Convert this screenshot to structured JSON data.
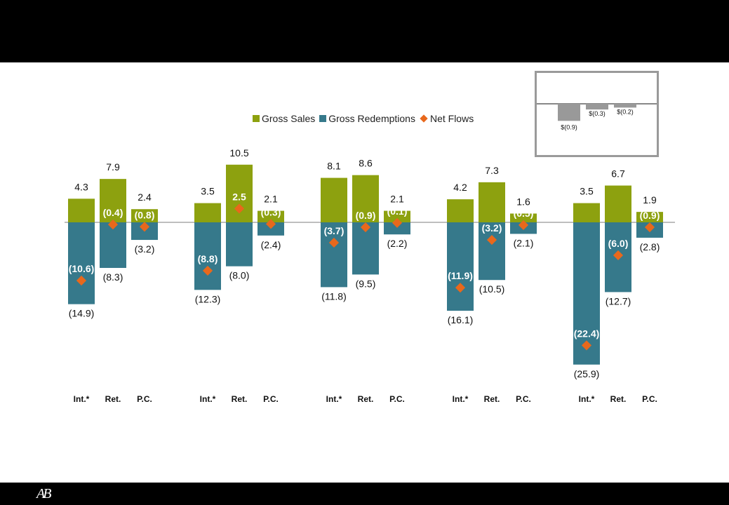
{
  "legend": {
    "gross_sales": "Gross Sales",
    "gross_redemptions": "Gross Redemptions",
    "net_flows": "Net Flows"
  },
  "logo_text": "AB",
  "colors": {
    "gross_sales": "#8da10f",
    "gross_redemptions": "#36798b",
    "net_flows": "#e8681c",
    "inset_bars": "#999999"
  },
  "chart_data": [
    {
      "type": "bar",
      "categories": [
        "Int.*",
        "Ret.",
        "P.C.",
        "Int.*",
        "Ret.",
        "P.C.",
        "Int.*",
        "Ret.",
        "P.C.",
        "Int.*",
        "Ret.",
        "P.C.",
        "Int.*",
        "Ret.",
        "P.C."
      ],
      "series": [
        {
          "name": "Gross Sales",
          "values": [
            4.3,
            7.9,
            2.4,
            3.5,
            10.5,
            2.1,
            8.1,
            8.6,
            2.1,
            4.2,
            7.3,
            1.6,
            3.5,
            6.7,
            1.9
          ],
          "labels": [
            "4.3",
            "7.9",
            "2.4",
            "3.5",
            "10.5",
            "2.1",
            "8.1",
            "8.6",
            "2.1",
            "4.2",
            "7.3",
            "1.6",
            "3.5",
            "6.7",
            "1.9"
          ]
        },
        {
          "name": "Gross Redemptions",
          "values": [
            -14.9,
            -8.3,
            -3.2,
            -12.3,
            -8.0,
            -2.4,
            -11.8,
            -9.5,
            -2.2,
            -16.1,
            -10.5,
            -2.1,
            -25.9,
            -12.7,
            -2.8
          ],
          "labels": [
            "(14.9)",
            "(8.3)",
            "(3.2)",
            "(12.3)",
            "(8.0)",
            "(2.4)",
            "(11.8)",
            "(9.5)",
            "(2.2)",
            "(16.1)",
            "(10.5)",
            "(2.1)",
            "(25.9)",
            "(12.7)",
            "(2.8)"
          ]
        },
        {
          "name": "Net Flows",
          "values": [
            -10.6,
            -0.4,
            -0.8,
            -8.8,
            2.5,
            -0.3,
            -3.7,
            -0.9,
            -0.1,
            -11.9,
            -3.2,
            -0.5,
            -22.4,
            -6.0,
            -0.9
          ],
          "labels": [
            "(10.6)",
            "(0.4)",
            "(0.8)",
            "(8.8)",
            "2.5",
            "(0.3)",
            "(3.7)",
            "(0.9)",
            "(0.1)",
            "(11.9)",
            "(3.2)",
            "(0.5)",
            "(22.4)",
            "(6.0)",
            "(0.9)"
          ]
        }
      ],
      "legend_position": "top"
    },
    {
      "type": "bar",
      "values": [
        -0.9,
        -0.3,
        -0.2
      ],
      "labels": [
        "$(0.9)",
        "$(0.3)",
        "$(0.2)"
      ]
    }
  ]
}
